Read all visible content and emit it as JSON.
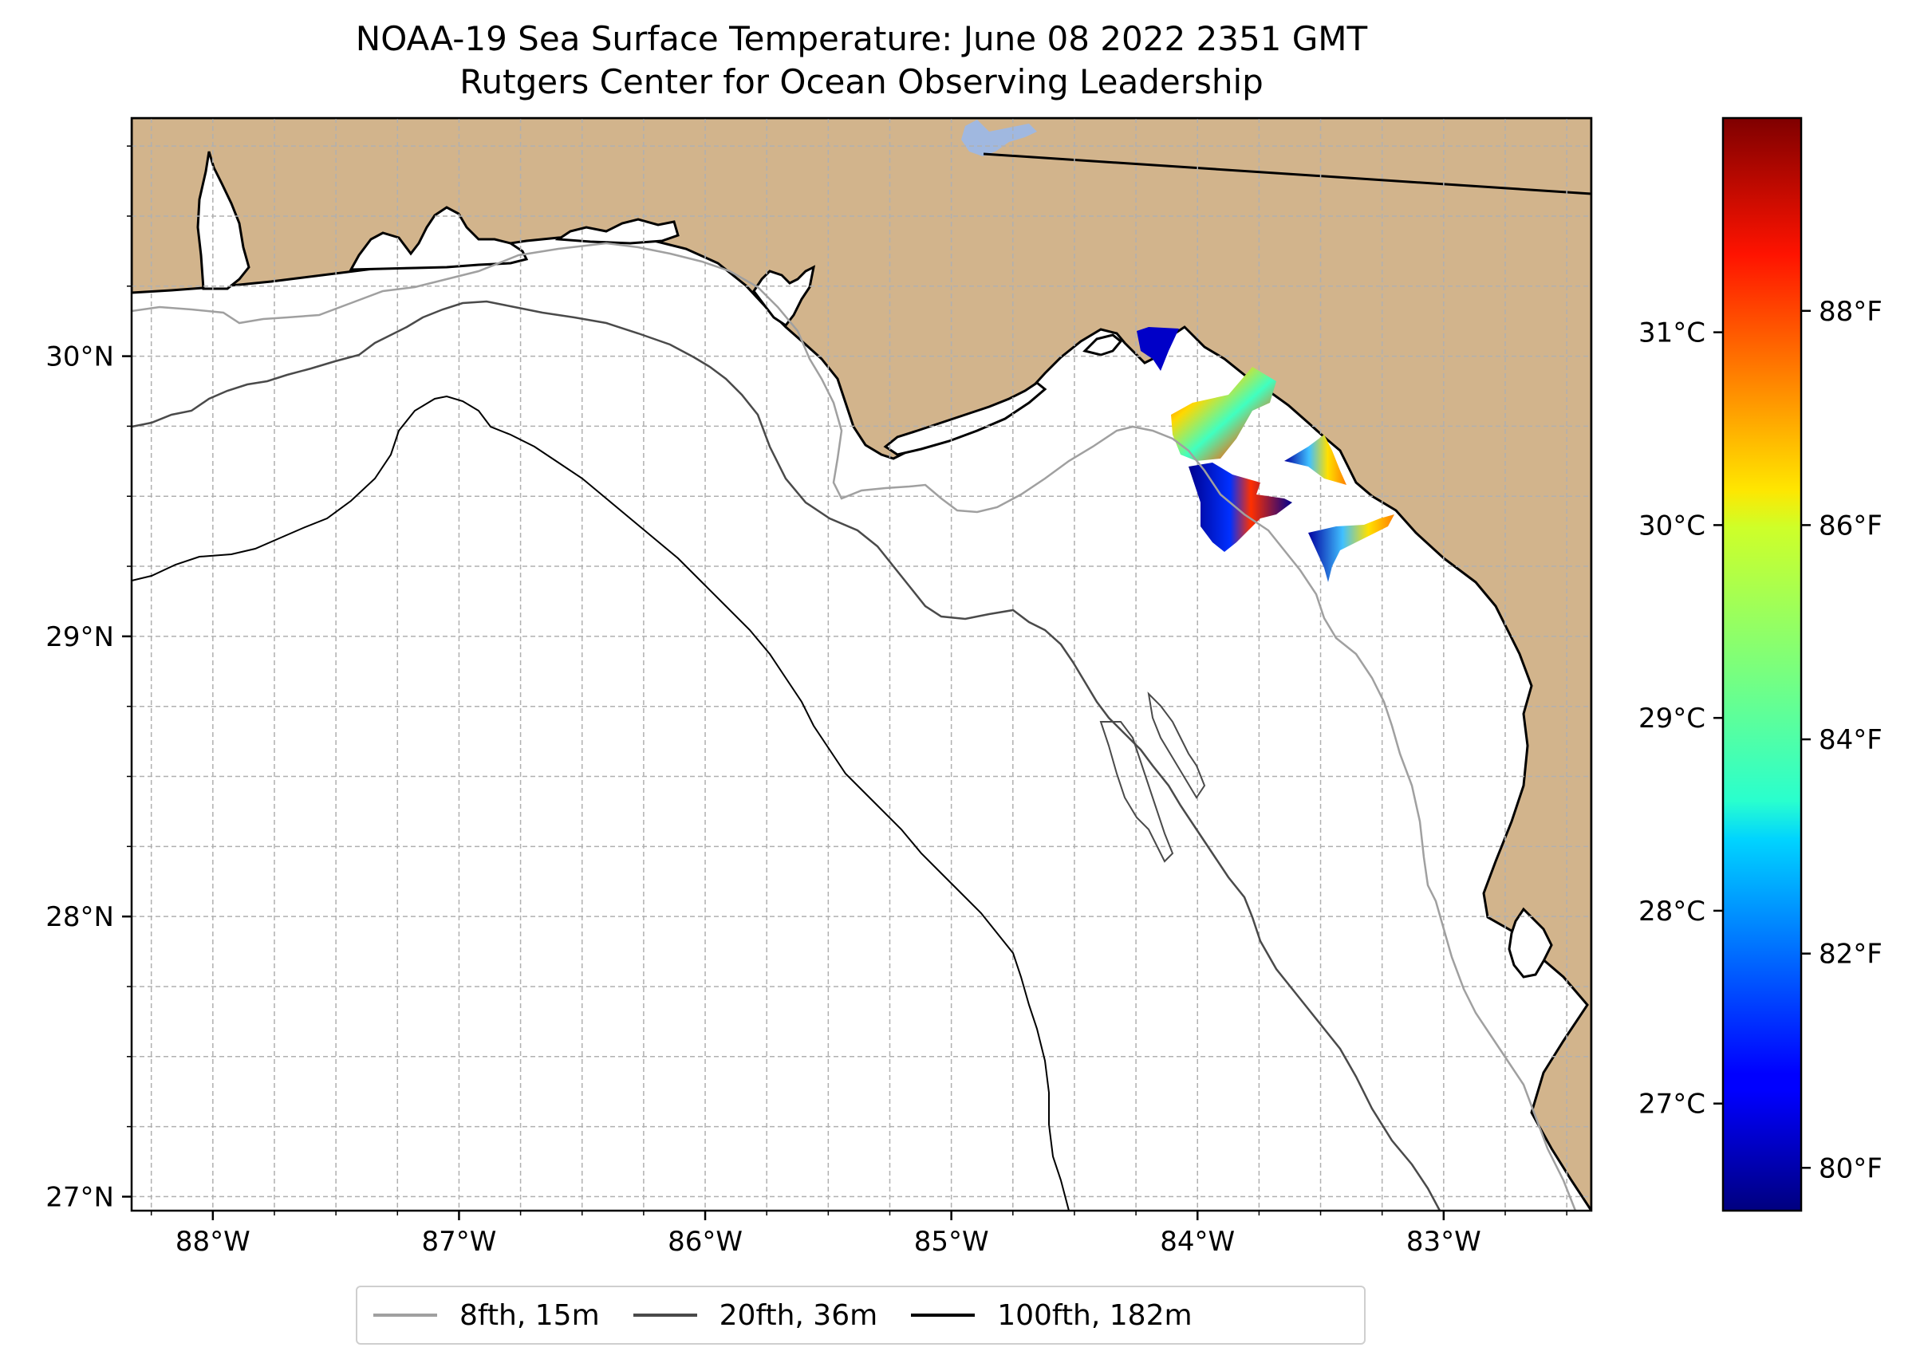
{
  "title": {
    "line1": "NOAA-19 Sea Surface Temperature: June 08 2022 2351 GMT",
    "line2": "Rutgers Center for Ocean Observing Leadership"
  },
  "map": {
    "lon_range": [
      -88.33,
      -82.4
    ],
    "lat_range": [
      26.95,
      30.85
    ],
    "land_color": "#d2b48c",
    "water_color": "#ffffff",
    "grid_color": "#b0b0b0"
  },
  "axes": {
    "lon_ticks": [
      {
        "value": -88,
        "label": "88°W"
      },
      {
        "value": -87,
        "label": "87°W"
      },
      {
        "value": -86,
        "label": "86°W"
      },
      {
        "value": -85,
        "label": "85°W"
      },
      {
        "value": -84,
        "label": "84°W"
      },
      {
        "value": -83,
        "label": "83°W"
      }
    ],
    "lat_ticks": [
      {
        "value": 27,
        "label": "27°N"
      },
      {
        "value": 28,
        "label": "28°N"
      },
      {
        "value": 29,
        "label": "29°N"
      },
      {
        "value": 30,
        "label": "30°N"
      }
    ]
  },
  "colorbar": {
    "colormap": "jet",
    "celsius_ticks": [
      {
        "value": 27,
        "label": "27°C"
      },
      {
        "value": 28,
        "label": "28°C"
      },
      {
        "value": 29,
        "label": "29°C"
      },
      {
        "value": 30,
        "label": "30°C"
      },
      {
        "value": 31,
        "label": "31°C"
      }
    ],
    "fahrenheit_ticks": [
      {
        "value": 80,
        "label": "80°F"
      },
      {
        "value": 82,
        "label": "82°F"
      },
      {
        "value": 84,
        "label": "84°F"
      },
      {
        "value": 86,
        "label": "86°F"
      },
      {
        "value": 88,
        "label": "88°F"
      }
    ]
  },
  "legend": {
    "items": [
      {
        "label": "8fth, 15m",
        "color": "#a0a0a0"
      },
      {
        "label": "20fth, 36m",
        "color": "#4a4a4a"
      },
      {
        "label": "100fth, 182m",
        "color": "#000000"
      }
    ]
  }
}
